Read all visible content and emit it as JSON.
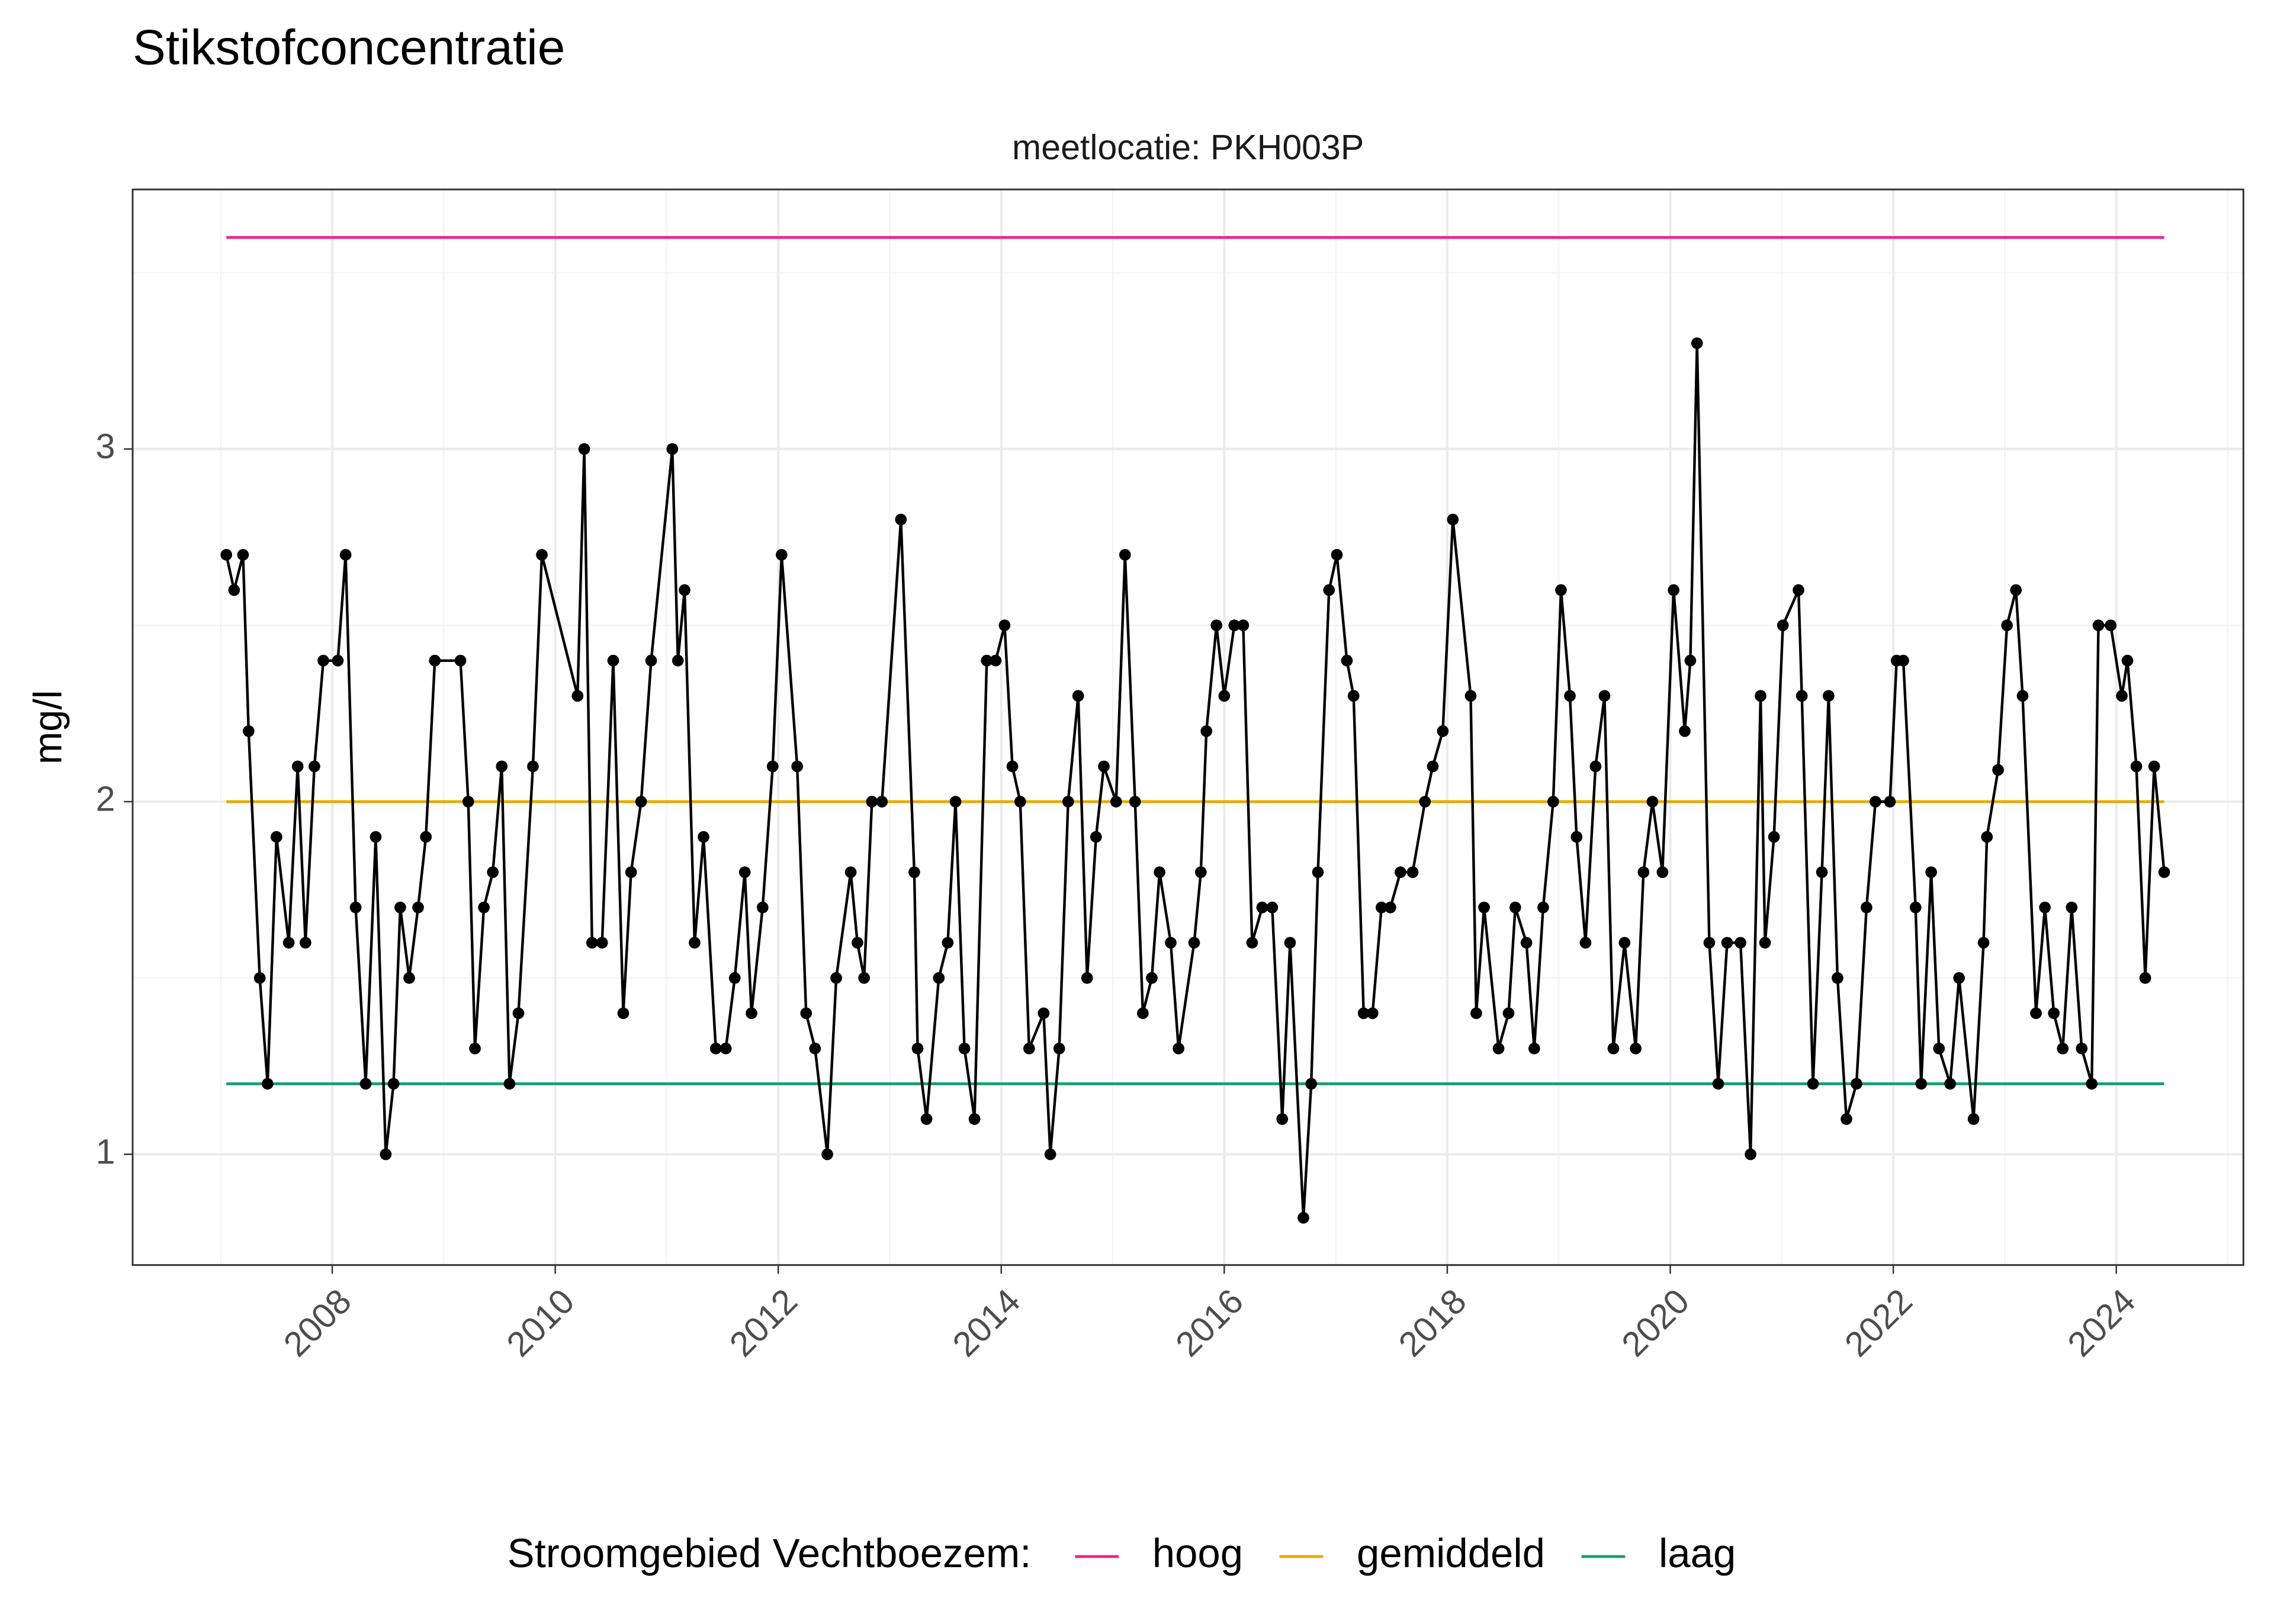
{
  "chart_data": {
    "type": "line",
    "title": "Stikstofconcentratie",
    "subtitle": "meetlocatie: PKH003P",
    "y_label": "mg/l",
    "legend_title": "Stroomgebied Vechtboezem:",
    "legend_position": "bottom",
    "grid": true,
    "xlim": [
      2006.21,
      2025.14
    ],
    "ylim": [
      0.686,
      3.736
    ],
    "xticks": [
      2008,
      2010,
      2012,
      2014,
      2016,
      2018,
      2020,
      2022,
      2024
    ],
    "yticks": [
      1,
      2,
      3
    ],
    "x_minor_ticks": [
      2007,
      2009,
      2011,
      2013,
      2015,
      2017,
      2019,
      2021,
      2023,
      2025
    ],
    "y_minor_ticks": [
      1.5,
      2.5,
      3.5
    ],
    "color": "#000000",
    "x": [
      2007.05,
      2007.12,
      2007.2,
      2007.25,
      2007.35,
      2007.42,
      2007.5,
      2007.61,
      2007.69,
      2007.76,
      2007.84,
      2007.92,
      2008.05,
      2008.12,
      2008.21,
      2008.3,
      2008.39,
      2008.48,
      2008.55,
      2008.61,
      2008.69,
      2008.77,
      2008.84,
      2008.92,
      2009.15,
      2009.22,
      2009.28,
      2009.36,
      2009.44,
      2009.52,
      2009.59,
      2009.67,
      2009.8,
      2009.88,
      2010.2,
      2010.26,
      2010.33,
      2010.42,
      2010.52,
      2010.61,
      2010.68,
      2010.77,
      2010.86,
      2011.05,
      2011.1,
      2011.16,
      2011.25,
      2011.33,
      2011.44,
      2011.53,
      2011.61,
      2011.7,
      2011.76,
      2011.86,
      2011.95,
      2012.03,
      2012.17,
      2012.25,
      2012.33,
      2012.44,
      2012.52,
      2012.65,
      2012.71,
      2012.77,
      2012.84,
      2012.93,
      2013.1,
      2013.22,
      2013.25,
      2013.33,
      2013.44,
      2013.52,
      2013.59,
      2013.67,
      2013.76,
      2013.87,
      2013.95,
      2014.03,
      2014.1,
      2014.17,
      2014.25,
      2014.38,
      2014.44,
      2014.52,
      2014.6,
      2014.69,
      2014.77,
      2014.85,
      2014.92,
      2015.03,
      2015.11,
      2015.2,
      2015.27,
      2015.35,
      2015.42,
      2015.52,
      2015.59,
      2015.73,
      2015.79,
      2015.84,
      2015.93,
      2016.0,
      2016.09,
      2016.17,
      2016.25,
      2016.34,
      2016.43,
      2016.52,
      2016.59,
      2016.71,
      2016.78,
      2016.84,
      2016.94,
      2017.01,
      2017.1,
      2017.16,
      2017.25,
      2017.33,
      2017.41,
      2017.49,
      2017.58,
      2017.69,
      2017.8,
      2017.87,
      2017.96,
      2018.05,
      2018.21,
      2018.26,
      2018.33,
      2018.46,
      2018.55,
      2018.61,
      2018.71,
      2018.78,
      2018.86,
      2018.95,
      2019.02,
      2019.1,
      2019.16,
      2019.24,
      2019.33,
      2019.41,
      2019.49,
      2019.59,
      2019.69,
      2019.76,
      2019.84,
      2019.93,
      2020.03,
      2020.13,
      2020.18,
      2020.24,
      2020.35,
      2020.43,
      2020.51,
      2020.63,
      2020.72,
      2020.81,
      2020.85,
      2020.93,
      2021.01,
      2021.15,
      2021.18,
      2021.28,
      2021.36,
      2021.42,
      2021.5,
      2021.58,
      2021.67,
      2021.76,
      2021.84,
      2021.97,
      2022.03,
      2022.09,
      2022.2,
      2022.25,
      2022.34,
      2022.41,
      2022.51,
      2022.59,
      2022.72,
      2022.81,
      2022.84,
      2022.94,
      2023.02,
      2023.1,
      2023.16,
      2023.28,
      2023.36,
      2023.44,
      2023.52,
      2023.6,
      2023.69,
      2023.78,
      2023.84,
      2023.95,
      2024.05,
      2024.1,
      2024.18,
      2024.26,
      2024.34,
      2024.43
    ],
    "values": [
      2.7,
      2.6,
      2.7,
      2.2,
      1.5,
      1.2,
      1.9,
      1.6,
      2.1,
      1.6,
      2.1,
      2.4,
      2.4,
      2.7,
      1.7,
      1.2,
      1.9,
      1.0,
      1.2,
      1.7,
      1.5,
      1.7,
      1.9,
      2.4,
      2.4,
      2.0,
      1.3,
      1.7,
      1.8,
      2.1,
      1.2,
      1.4,
      2.1,
      2.7,
      2.3,
      3.0,
      1.6,
      1.6,
      2.4,
      1.4,
      1.8,
      2.0,
      2.4,
      3.0,
      2.4,
      2.6,
      1.6,
      1.9,
      1.3,
      1.3,
      1.5,
      1.8,
      1.4,
      1.7,
      2.1,
      2.7,
      2.1,
      1.4,
      1.3,
      1.0,
      1.5,
      1.8,
      1.6,
      1.5,
      2.0,
      2.0,
      2.8,
      1.8,
      1.3,
      1.1,
      1.5,
      1.6,
      2.0,
      1.3,
      1.1,
      2.4,
      2.4,
      2.5,
      2.1,
      2.0,
      1.3,
      1.4,
      1.0,
      1.3,
      2.0,
      2.3,
      1.5,
      1.9,
      2.1,
      2.0,
      2.7,
      2.0,
      1.4,
      1.5,
      1.8,
      1.6,
      1.3,
      1.6,
      1.8,
      2.2,
      2.5,
      2.3,
      2.5,
      2.5,
      1.6,
      1.7,
      1.7,
      1.1,
      1.6,
      0.82,
      1.2,
      1.8,
      2.6,
      2.7,
      2.4,
      2.3,
      1.4,
      1.4,
      1.7,
      1.7,
      1.8,
      1.8,
      2.0,
      2.1,
      2.2,
      2.8,
      2.3,
      1.4,
      1.7,
      1.3,
      1.4,
      1.7,
      1.6,
      1.3,
      1.7,
      2.0,
      2.6,
      2.3,
      1.9,
      1.6,
      2.1,
      2.3,
      1.3,
      1.6,
      1.3,
      1.8,
      2.0,
      1.8,
      2.6,
      2.2,
      2.4,
      3.3,
      1.6,
      1.2,
      1.6,
      1.6,
      1.0,
      2.3,
      1.6,
      1.9,
      2.5,
      2.6,
      2.3,
      1.2,
      1.8,
      2.3,
      1.5,
      1.1,
      1.2,
      1.7,
      2.0,
      2.0,
      2.4,
      2.4,
      1.7,
      1.2,
      1.8,
      1.3,
      1.2,
      1.5,
      1.1,
      1.6,
      1.9,
      2.09,
      2.5,
      2.6,
      2.3,
      1.4,
      1.7,
      1.4,
      1.3,
      1.7,
      1.3,
      1.2,
      2.5,
      2.5,
      2.3,
      2.4,
      2.1,
      1.5,
      2.1,
      1.8
    ],
    "series": [
      {
        "name": "hoog",
        "color": "#e7298a",
        "x": [
          2007.05,
          2024.43
        ],
        "values": [
          3.6,
          3.6
        ]
      },
      {
        "name": "gemiddeld",
        "color": "#e6ab02",
        "x": [
          2007.05,
          2024.43
        ],
        "values": [
          2.0,
          2.0
        ]
      },
      {
        "name": "laag",
        "color": "#1b9e77",
        "x": [
          2007.05,
          2024.43
        ],
        "values": [
          1.2,
          1.2
        ]
      }
    ]
  }
}
